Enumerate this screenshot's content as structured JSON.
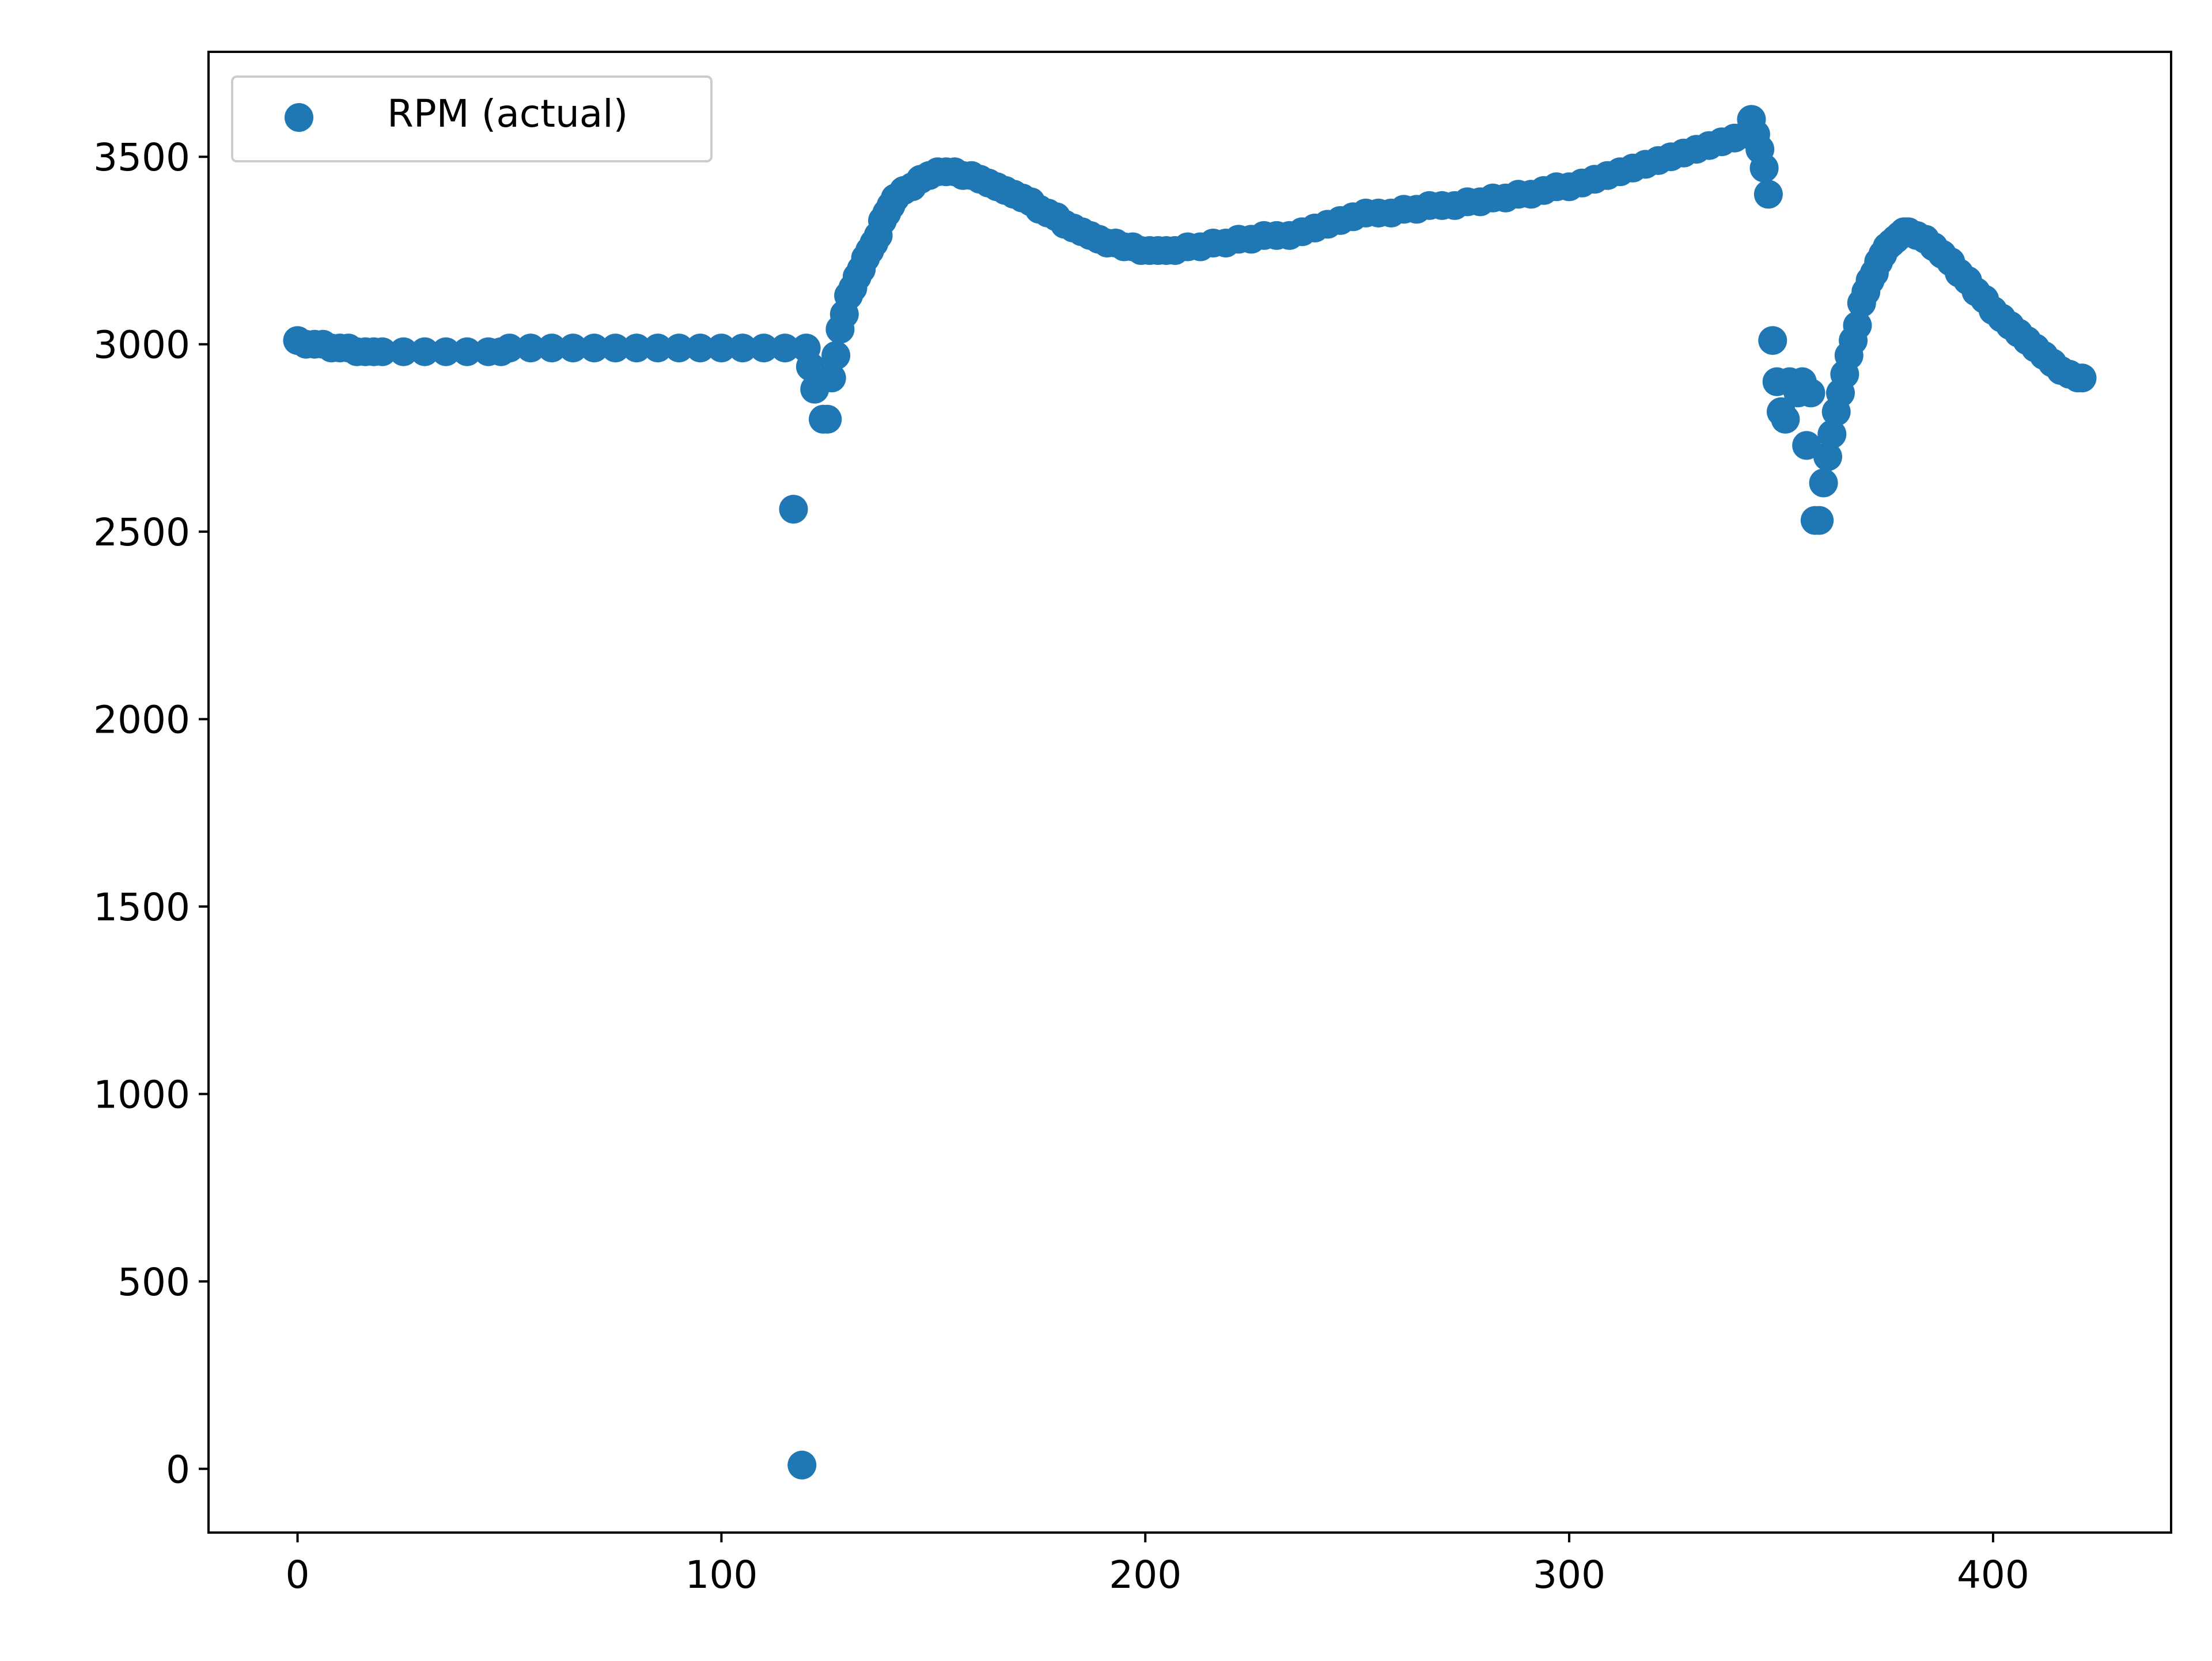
{
  "chart_data": {
    "type": "scatter",
    "title": "",
    "xlabel": "",
    "ylabel": "",
    "xlim": [
      -21,
      442
    ],
    "ylim": [
      -170,
      3780
    ],
    "xticks": [
      0,
      100,
      200,
      300,
      400
    ],
    "yticks": [
      0,
      500,
      1000,
      1500,
      2000,
      2500,
      3000,
      3500
    ],
    "grid": false,
    "legend_position": "upper-left",
    "series": [
      {
        "name": "RPM (actual)",
        "color": "#1f77b4",
        "marker": "circle",
        "points": [
          [
            0,
            3010
          ],
          [
            2,
            3000
          ],
          [
            4,
            3000
          ],
          [
            6,
            3000
          ],
          [
            8,
            2990
          ],
          [
            10,
            2990
          ],
          [
            12,
            2990
          ],
          [
            14,
            2980
          ],
          [
            16,
            2980
          ],
          [
            18,
            2980
          ],
          [
            20,
            2980
          ],
          [
            25,
            2980
          ],
          [
            30,
            2980
          ],
          [
            35,
            2980
          ],
          [
            40,
            2980
          ],
          [
            45,
            2980
          ],
          [
            48,
            2980
          ],
          [
            50,
            2990
          ],
          [
            55,
            2990
          ],
          [
            60,
            2990
          ],
          [
            65,
            2990
          ],
          [
            70,
            2990
          ],
          [
            75,
            2990
          ],
          [
            80,
            2990
          ],
          [
            85,
            2990
          ],
          [
            90,
            2990
          ],
          [
            95,
            2990
          ],
          [
            100,
            2990
          ],
          [
            105,
            2990
          ],
          [
            110,
            2990
          ],
          [
            115,
            2990
          ],
          [
            117,
            2560
          ],
          [
            119,
            10
          ],
          [
            120,
            2990
          ],
          [
            121,
            2940
          ],
          [
            122,
            2880
          ],
          [
            123,
            2910
          ],
          [
            124,
            2800
          ],
          [
            125,
            2800
          ],
          [
            126,
            2910
          ],
          [
            127,
            2970
          ],
          [
            128,
            3040
          ],
          [
            129,
            3080
          ],
          [
            130,
            3130
          ],
          [
            131,
            3150
          ],
          [
            132,
            3180
          ],
          [
            133,
            3200
          ],
          [
            134,
            3230
          ],
          [
            135,
            3250
          ],
          [
            136,
            3270
          ],
          [
            137,
            3290
          ],
          [
            138,
            3330
          ],
          [
            139,
            3350
          ],
          [
            140,
            3370
          ],
          [
            141,
            3390
          ],
          [
            143,
            3410
          ],
          [
            145,
            3420
          ],
          [
            147,
            3440
          ],
          [
            149,
            3450
          ],
          [
            151,
            3460
          ],
          [
            153,
            3460
          ],
          [
            155,
            3460
          ],
          [
            157,
            3450
          ],
          [
            159,
            3450
          ],
          [
            161,
            3440
          ],
          [
            163,
            3430
          ],
          [
            165,
            3420
          ],
          [
            167,
            3410
          ],
          [
            169,
            3400
          ],
          [
            171,
            3390
          ],
          [
            173,
            3380
          ],
          [
            175,
            3360
          ],
          [
            177,
            3350
          ],
          [
            179,
            3340
          ],
          [
            181,
            3320
          ],
          [
            183,
            3310
          ],
          [
            185,
            3300
          ],
          [
            187,
            3290
          ],
          [
            189,
            3280
          ],
          [
            191,
            3270
          ],
          [
            193,
            3270
          ],
          [
            195,
            3260
          ],
          [
            197,
            3260
          ],
          [
            199,
            3250
          ],
          [
            201,
            3250
          ],
          [
            203,
            3250
          ],
          [
            205,
            3250
          ],
          [
            207,
            3250
          ],
          [
            210,
            3260
          ],
          [
            213,
            3260
          ],
          [
            216,
            3270
          ],
          [
            219,
            3270
          ],
          [
            222,
            3280
          ],
          [
            225,
            3280
          ],
          [
            228,
            3290
          ],
          [
            231,
            3290
          ],
          [
            234,
            3290
          ],
          [
            237,
            3300
          ],
          [
            240,
            3310
          ],
          [
            243,
            3320
          ],
          [
            246,
            3330
          ],
          [
            249,
            3340
          ],
          [
            252,
            3350
          ],
          [
            255,
            3350
          ],
          [
            258,
            3350
          ],
          [
            261,
            3360
          ],
          [
            264,
            3360
          ],
          [
            267,
            3370
          ],
          [
            270,
            3370
          ],
          [
            273,
            3370
          ],
          [
            276,
            3380
          ],
          [
            279,
            3380
          ],
          [
            282,
            3390
          ],
          [
            285,
            3390
          ],
          [
            288,
            3400
          ],
          [
            291,
            3400
          ],
          [
            294,
            3410
          ],
          [
            297,
            3420
          ],
          [
            300,
            3420
          ],
          [
            303,
            3430
          ],
          [
            306,
            3440
          ],
          [
            309,
            3450
          ],
          [
            312,
            3460
          ],
          [
            315,
            3470
          ],
          [
            318,
            3480
          ],
          [
            321,
            3490
          ],
          [
            324,
            3500
          ],
          [
            327,
            3510
          ],
          [
            330,
            3520
          ],
          [
            333,
            3530
          ],
          [
            336,
            3540
          ],
          [
            339,
            3550
          ],
          [
            342,
            3560
          ],
          [
            343,
            3600
          ],
          [
            344,
            3560
          ],
          [
            345,
            3520
          ],
          [
            346,
            3470
          ],
          [
            347,
            3400
          ],
          [
            348,
            3010
          ],
          [
            349,
            2900
          ],
          [
            350,
            2820
          ],
          [
            351,
            2800
          ],
          [
            352,
            2900
          ],
          [
            354,
            2870
          ],
          [
            355,
            2900
          ],
          [
            356,
            2730
          ],
          [
            357,
            2870
          ],
          [
            358,
            2530
          ],
          [
            359,
            2530
          ],
          [
            360,
            2630
          ],
          [
            361,
            2700
          ],
          [
            362,
            2760
          ],
          [
            363,
            2820
          ],
          [
            364,
            2870
          ],
          [
            365,
            2920
          ],
          [
            366,
            2970
          ],
          [
            367,
            3010
          ],
          [
            368,
            3050
          ],
          [
            369,
            3110
          ],
          [
            370,
            3140
          ],
          [
            371,
            3170
          ],
          [
            372,
            3190
          ],
          [
            373,
            3220
          ],
          [
            374,
            3240
          ],
          [
            375,
            3260
          ],
          [
            376,
            3270
          ],
          [
            377,
            3280
          ],
          [
            378,
            3290
          ],
          [
            379,
            3300
          ],
          [
            380,
            3300
          ],
          [
            382,
            3290
          ],
          [
            384,
            3280
          ],
          [
            386,
            3260
          ],
          [
            388,
            3240
          ],
          [
            390,
            3220
          ],
          [
            392,
            3190
          ],
          [
            394,
            3170
          ],
          [
            396,
            3140
          ],
          [
            398,
            3120
          ],
          [
            400,
            3090
          ],
          [
            402,
            3070
          ],
          [
            404,
            3050
          ],
          [
            406,
            3030
          ],
          [
            408,
            3010
          ],
          [
            410,
            2990
          ],
          [
            412,
            2970
          ],
          [
            414,
            2950
          ],
          [
            416,
            2930
          ],
          [
            418,
            2920
          ],
          [
            420,
            2910
          ],
          [
            421,
            2910
          ]
        ]
      }
    ]
  }
}
